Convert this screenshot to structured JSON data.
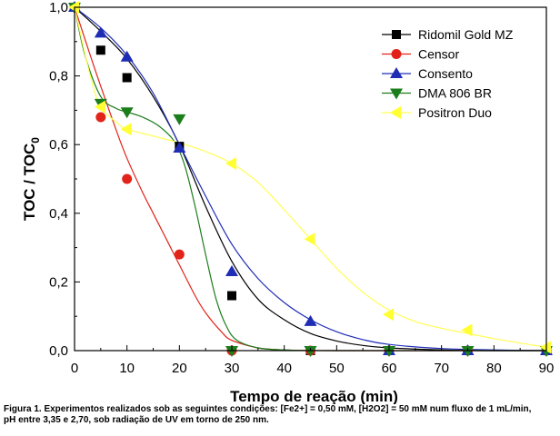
{
  "chart_data": {
    "type": "line",
    "xlabel": "Tempo de reação (min)",
    "ylabel_main": "TOC / TOC",
    "ylabel_sub": "0",
    "xlim": [
      0,
      90
    ],
    "ylim": [
      0,
      1.0
    ],
    "xticks": [
      "0",
      "10",
      "20",
      "30",
      "40",
      "50",
      "60",
      "70",
      "80",
      "90"
    ],
    "yticks": [
      "0,0",
      "0,2",
      "0,4",
      "0,6",
      "0,8",
      "1,0"
    ],
    "legend_position": "top-right",
    "grid": false,
    "series": [
      {
        "name": "Ridomil Gold MZ",
        "marker": "square",
        "color": "#000000",
        "line_color": "#000000",
        "points": [
          [
            0,
            1.0
          ],
          [
            5,
            0.875
          ],
          [
            10,
            0.795
          ],
          [
            20,
            0.595
          ],
          [
            30,
            0.16
          ],
          [
            45,
            0.0
          ],
          [
            60,
            0.0
          ],
          [
            75,
            0.0
          ],
          [
            90,
            0.0
          ]
        ],
        "fit": [
          [
            0,
            1.0
          ],
          [
            5,
            0.93
          ],
          [
            10,
            0.85
          ],
          [
            15,
            0.74
          ],
          [
            20,
            0.6
          ],
          [
            25,
            0.42
          ],
          [
            30,
            0.26
          ],
          [
            35,
            0.15
          ],
          [
            40,
            0.09
          ],
          [
            45,
            0.05
          ],
          [
            50,
            0.028
          ],
          [
            55,
            0.015
          ],
          [
            60,
            0.008
          ],
          [
            70,
            0.002
          ],
          [
            80,
            0.0
          ],
          [
            90,
            0.0
          ]
        ]
      },
      {
        "name": "Censor",
        "marker": "circle",
        "color": "#e2231a",
        "line_color": "#e2231a",
        "points": [
          [
            0,
            1.0
          ],
          [
            5,
            0.68
          ],
          [
            10,
            0.5
          ],
          [
            20,
            0.28
          ],
          [
            30,
            0.0
          ],
          [
            45,
            0.0
          ],
          [
            60,
            0.0
          ],
          [
            75,
            0.0
          ],
          [
            90,
            0.0
          ]
        ],
        "fit": [
          [
            0,
            1.0
          ],
          [
            3,
            0.86
          ],
          [
            5,
            0.77
          ],
          [
            8,
            0.64
          ],
          [
            10,
            0.56
          ],
          [
            13,
            0.46
          ],
          [
            15,
            0.4
          ],
          [
            18,
            0.31
          ],
          [
            20,
            0.25
          ],
          [
            23,
            0.16
          ],
          [
            25,
            0.11
          ],
          [
            28,
            0.055
          ],
          [
            30,
            0.03
          ],
          [
            35,
            0.008
          ],
          [
            40,
            0.002
          ],
          [
            50,
            0.0
          ],
          [
            90,
            0.0
          ]
        ]
      },
      {
        "name": "Consento",
        "marker": "triangle-up",
        "color": "#1f2db5",
        "line_color": "#1f2db5",
        "points": [
          [
            0,
            1.0
          ],
          [
            5,
            0.925
          ],
          [
            10,
            0.855
          ],
          [
            20,
            0.59
          ],
          [
            30,
            0.23
          ],
          [
            45,
            0.085
          ],
          [
            60,
            0.0
          ],
          [
            75,
            0.0
          ],
          [
            90,
            0.0
          ]
        ],
        "fit": [
          [
            0,
            1.0
          ],
          [
            5,
            0.94
          ],
          [
            10,
            0.86
          ],
          [
            15,
            0.75
          ],
          [
            20,
            0.6
          ],
          [
            25,
            0.45
          ],
          [
            30,
            0.31
          ],
          [
            35,
            0.21
          ],
          [
            40,
            0.14
          ],
          [
            45,
            0.09
          ],
          [
            50,
            0.055
          ],
          [
            55,
            0.032
          ],
          [
            60,
            0.018
          ],
          [
            70,
            0.006
          ],
          [
            80,
            0.002
          ],
          [
            90,
            0.0
          ]
        ]
      },
      {
        "name": "DMA 806 BR",
        "marker": "triangle-down",
        "color": "#1c7d1c",
        "line_color": "#1c7d1c",
        "points": [
          [
            0,
            1.0
          ],
          [
            5,
            0.72
          ],
          [
            10,
            0.695
          ],
          [
            20,
            0.675
          ],
          [
            30,
            0.0
          ],
          [
            45,
            0.0
          ],
          [
            60,
            0.0
          ],
          [
            75,
            0.0
          ],
          [
            90,
            0.0
          ]
        ],
        "fit": [
          [
            0,
            1.0
          ],
          [
            2,
            0.86
          ],
          [
            5,
            0.74
          ],
          [
            8,
            0.705
          ],
          [
            10,
            0.695
          ],
          [
            13,
            0.68
          ],
          [
            16,
            0.655
          ],
          [
            19,
            0.61
          ],
          [
            21,
            0.54
          ],
          [
            23,
            0.42
          ],
          [
            25,
            0.28
          ],
          [
            27,
            0.15
          ],
          [
            29,
            0.07
          ],
          [
            31,
            0.03
          ],
          [
            35,
            0.008
          ],
          [
            40,
            0.002
          ],
          [
            50,
            0.0
          ],
          [
            90,
            0.0
          ]
        ]
      },
      {
        "name": "Positron Duo",
        "marker": "triangle-left",
        "color": "#ffff33",
        "line_color": "#ffff55",
        "points": [
          [
            0,
            1.0
          ],
          [
            5,
            0.71
          ],
          [
            10,
            0.645
          ],
          [
            30,
            0.545
          ],
          [
            45,
            0.325
          ],
          [
            60,
            0.105
          ],
          [
            75,
            0.06
          ],
          [
            90,
            0.01
          ]
        ],
        "fit": [
          [
            0,
            1.0
          ],
          [
            3,
            0.8
          ],
          [
            5,
            0.71
          ],
          [
            8,
            0.665
          ],
          [
            10,
            0.645
          ],
          [
            15,
            0.625
          ],
          [
            20,
            0.605
          ],
          [
            25,
            0.58
          ],
          [
            30,
            0.545
          ],
          [
            35,
            0.49
          ],
          [
            40,
            0.41
          ],
          [
            45,
            0.325
          ],
          [
            50,
            0.24
          ],
          [
            55,
            0.17
          ],
          [
            60,
            0.118
          ],
          [
            65,
            0.085
          ],
          [
            70,
            0.065
          ],
          [
            75,
            0.05
          ],
          [
            80,
            0.035
          ],
          [
            85,
            0.022
          ],
          [
            90,
            0.01
          ]
        ]
      }
    ]
  },
  "caption": {
    "line1": "Figura 1. Experimentos realizados sob as seguintes condições: [Fe2+] = 0,50 mM, [H2O2] = 50 mM num fluxo de 1 mL/min,",
    "line2": "pH entre 3,35 e 2,70, sob radiação de UV em torno de 250 nm."
  }
}
